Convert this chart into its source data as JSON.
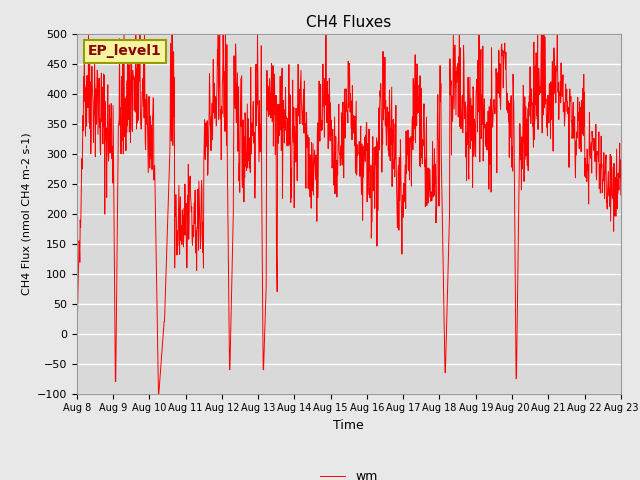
{
  "title": "CH4 Fluxes",
  "xlabel": "Time",
  "ylabel": "CH4 Flux (nmol CH4 m-2 s-1)",
  "ylim": [
    -100,
    500
  ],
  "legend_label": "wm",
  "annotation_text": "EP_level1",
  "line_color": "#ff0000",
  "background_color": "#d9d9d9",
  "fig_background": "#e8e8e8",
  "x_tick_labels": [
    "Aug 8",
    "Aug 9",
    "Aug 10",
    "Aug 11",
    "Aug 12",
    "Aug 13",
    "Aug 14",
    "Aug 15",
    "Aug 16",
    "Aug 17",
    "Aug 18",
    "Aug 19",
    "Aug 20",
    "Aug 21",
    "Aug 22",
    "Aug 23"
  ],
  "seed": 42,
  "n_points": 1440
}
